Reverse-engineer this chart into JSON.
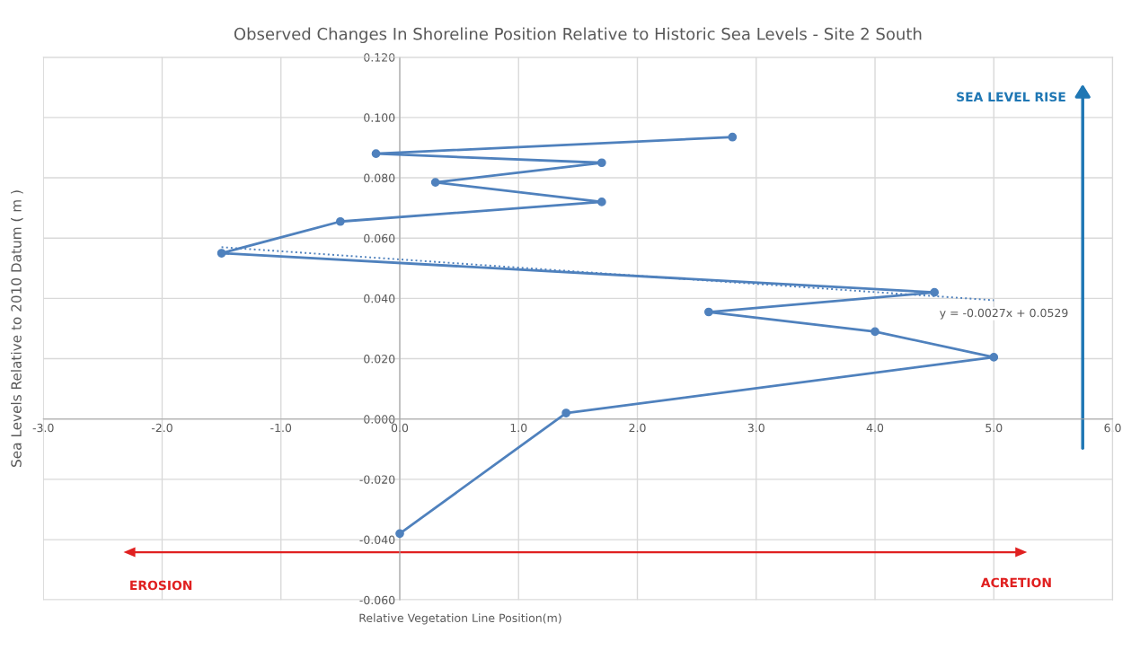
{
  "chart_data": {
    "type": "line",
    "title": "Observed Changes In Shoreline Position Relative to Historic Sea Levels - Site 2 South",
    "xlabel": "Relative Vegetation Line Position(m)",
    "ylabel": "Sea Levels Relative to 2010 Datum ( m )",
    "series": [
      {
        "color": "#4f81bd",
        "marker": "circle",
        "line_style": "solid",
        "x": [
          0.0,
          1.4,
          5.0,
          4.0,
          2.6,
          4.5,
          -1.5,
          -0.5,
          1.7,
          0.3,
          1.7,
          -0.2,
          2.8
        ],
        "values": [
          -0.038,
          0.002,
          0.0205,
          0.029,
          0.0355,
          0.042,
          0.055,
          0.0655,
          0.072,
          0.0785,
          0.085,
          0.088,
          0.0935
        ]
      },
      {
        "color": "#4f81bd",
        "marker": "none",
        "line_style": "dotted",
        "x": [
          -1.5,
          5.0
        ],
        "values": [
          0.057,
          0.0394
        ]
      }
    ],
    "xlim": [
      -3.0,
      6.0
    ],
    "xticks": [
      {
        "value": -3,
        "label": "-3.0"
      },
      {
        "value": -2,
        "label": "-2.0"
      },
      {
        "value": -1,
        "label": "-1.0"
      },
      {
        "value": 0,
        "label": "0.0"
      },
      {
        "value": 1,
        "label": "1.0"
      },
      {
        "value": 2,
        "label": "2.0"
      },
      {
        "value": 3,
        "label": "3.0"
      },
      {
        "value": 4,
        "label": "4.0"
      },
      {
        "value": 5,
        "label": "5.0"
      },
      {
        "value": 6,
        "label": "6.0"
      }
    ],
    "ylim": [
      -0.06,
      0.12
    ],
    "yticks": [
      {
        "value": -0.06,
        "label": "-0.060"
      },
      {
        "value": -0.04,
        "label": "-0.040"
      },
      {
        "value": -0.02,
        "label": "-0.020"
      },
      {
        "value": 0,
        "label": "0.000"
      },
      {
        "value": 0.02,
        "label": "0.020"
      },
      {
        "value": 0.04,
        "label": "0.040"
      },
      {
        "value": 0.06,
        "label": "0.060"
      },
      {
        "value": 0.08,
        "label": "0.080"
      },
      {
        "value": 0.1,
        "label": "0.100"
      },
      {
        "value": 0.12,
        "label": "0.120"
      }
    ],
    "grid": true,
    "legend": false,
    "annotations": [
      {
        "text": "y = -0.0027x + 0.0529",
        "x": 4.5,
        "y": 0.04
      },
      "SEA LEVEL RISE",
      "EROSION",
      "ACRETION"
    ]
  }
}
